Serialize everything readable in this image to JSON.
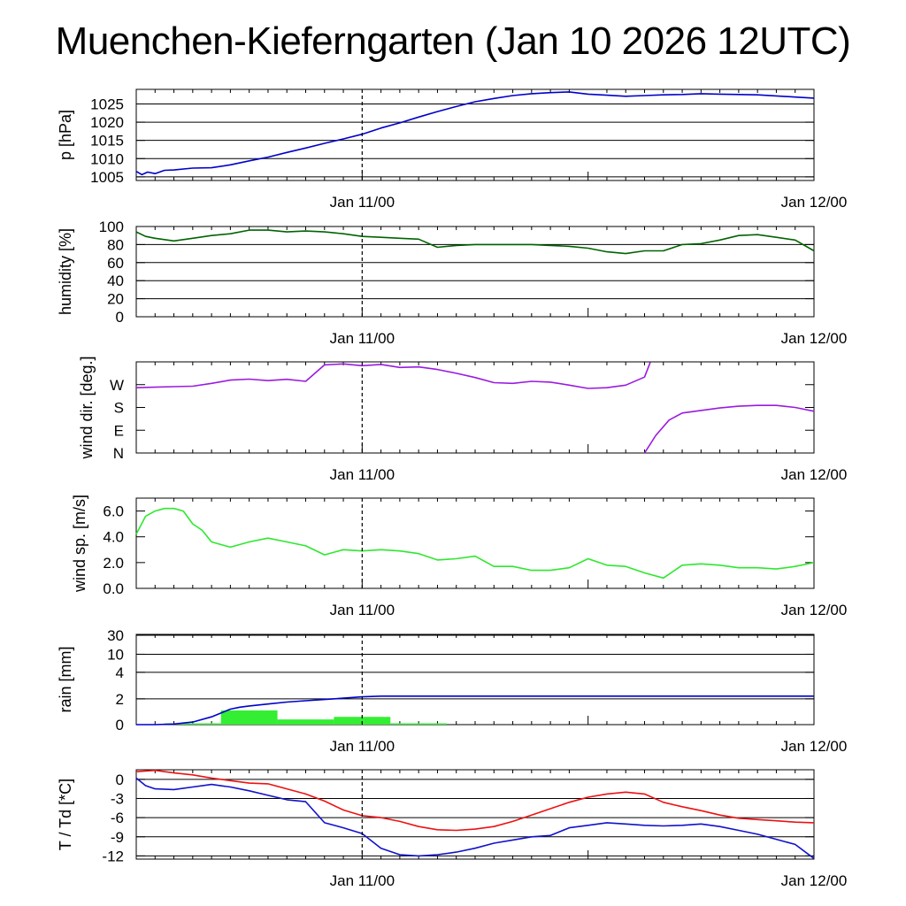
{
  "title": "Muenchen-Kieferngarten (Jan 10 2026 12UTC)",
  "time_labels": [
    "Jan 11/00",
    "Jan 12/00"
  ],
  "chart_data": [
    {
      "type": "line",
      "ylabel": "p [hPa]",
      "ylim": [
        1004,
        1029
      ],
      "yticks": [
        1005,
        1010,
        1015,
        1020,
        1025
      ],
      "gridlines": [
        1005,
        1010,
        1015,
        1020,
        1025
      ],
      "grid": true,
      "xlim": [
        0,
        36
      ],
      "series": [
        {
          "name": "pressure",
          "color": "#0000cc",
          "x": [
            0,
            0.3,
            0.6,
            1,
            1.5,
            2,
            3,
            4,
            5,
            6,
            7,
            8,
            9,
            10,
            11,
            12,
            13,
            14,
            15,
            16,
            17,
            18,
            19,
            20,
            21,
            22,
            23,
            24,
            25,
            26,
            27,
            28,
            29,
            30,
            31,
            32,
            33,
            34,
            35,
            36
          ],
          "y": [
            1006.5,
            1005.6,
            1006.3,
            1005.9,
            1006.8,
            1006.9,
            1007.4,
            1007.5,
            1008.3,
            1009.4,
            1010.4,
            1011.7,
            1012.9,
            1014.2,
            1015.4,
            1016.7,
            1018.4,
            1019.8,
            1021.4,
            1022.9,
            1024.3,
            1025.6,
            1026.5,
            1027.3,
            1027.8,
            1028.1,
            1028.3,
            1027.7,
            1027.4,
            1027.1,
            1027.3,
            1027.5,
            1027.6,
            1027.8,
            1027.7,
            1027.6,
            1027.5,
            1027.2,
            1026.9,
            1026.6
          ]
        }
      ]
    },
    {
      "type": "line",
      "ylabel": "humidity [%]",
      "ylim": [
        0,
        100
      ],
      "yticks": [
        0,
        20,
        40,
        60,
        80,
        100
      ],
      "gridlines": [
        20,
        40,
        60,
        80
      ],
      "grid": true,
      "xlim": [
        0,
        36
      ],
      "series": [
        {
          "name": "humidity",
          "color": "#006400",
          "x": [
            0,
            0.5,
            1,
            2,
            3,
            4,
            5,
            6,
            7,
            8,
            9,
            10,
            11,
            12,
            13,
            14,
            15,
            16,
            17,
            18,
            19,
            20,
            21,
            22,
            23,
            24,
            25,
            26,
            27,
            28,
            29,
            30,
            31,
            32,
            33,
            34,
            35,
            36
          ],
          "y": [
            94,
            89,
            87,
            84,
            87,
            90,
            92,
            96,
            96,
            94,
            95,
            94,
            92,
            89,
            88,
            87,
            86,
            77,
            79,
            80,
            80,
            80,
            80,
            79,
            78,
            76,
            72,
            70,
            73,
            73,
            80,
            81,
            85,
            90,
            91,
            88,
            85,
            73
          ]
        }
      ]
    },
    {
      "type": "line",
      "ylabel": "wind dir. [deg.]",
      "ylim": [
        0,
        360
      ],
      "ytick_values": [
        0,
        90,
        180,
        270
      ],
      "yticks": [
        "N",
        "E",
        "S",
        "W"
      ],
      "grid": false,
      "xlim": [
        0,
        36
      ],
      "series": [
        {
          "name": "wind direction segment 1",
          "color": "#9a1be0",
          "x": [
            0,
            1,
            2,
            3,
            4,
            5,
            6,
            7,
            8,
            9,
            10,
            11,
            12,
            13,
            14,
            15,
            16,
            17,
            18,
            19,
            20,
            21,
            22,
            23,
            24,
            25,
            26,
            27,
            27.3
          ],
          "y": [
            258,
            260,
            262,
            264,
            275,
            288,
            292,
            286,
            291,
            283,
            348,
            352,
            345,
            350,
            338,
            340,
            330,
            315,
            298,
            278,
            275,
            283,
            280,
            268,
            255,
            258,
            268,
            300,
            358
          ]
        },
        {
          "name": "wind direction segment 2",
          "color": "#9a1be0",
          "x": [
            27.0,
            27.6,
            28.3,
            29,
            30,
            31,
            32,
            33,
            34,
            35,
            36
          ],
          "y": [
            0,
            70,
            130,
            158,
            168,
            178,
            185,
            188,
            188,
            180,
            165
          ]
        }
      ]
    },
    {
      "type": "line",
      "ylabel": "wind sp. [m/s]",
      "ylim": [
        0,
        7
      ],
      "yticks": [
        "0.0",
        "2.0",
        "4.0",
        "6.0"
      ],
      "ytick_values": [
        0,
        2,
        4,
        6
      ],
      "grid": false,
      "xlim": [
        0,
        36
      ],
      "series": [
        {
          "name": "wind speed",
          "color": "#2ee82e",
          "x": [
            0,
            0.5,
            1,
            1.5,
            2,
            2.5,
            3,
            3.5,
            4,
            4.5,
            5,
            6,
            7,
            8,
            9,
            10,
            11,
            12,
            13,
            14,
            15,
            16,
            17,
            18,
            19,
            20,
            21,
            22,
            23,
            24,
            25,
            26,
            27,
            28,
            29,
            30,
            31,
            32,
            33,
            34,
            35,
            36
          ],
          "y": [
            4.2,
            5.6,
            6.0,
            6.2,
            6.2,
            6.0,
            5.0,
            4.5,
            3.6,
            3.4,
            3.2,
            3.6,
            3.9,
            3.6,
            3.3,
            2.6,
            3.0,
            2.9,
            3.0,
            2.9,
            2.7,
            2.2,
            2.3,
            2.5,
            1.7,
            1.7,
            1.4,
            1.4,
            1.6,
            2.3,
            1.8,
            1.7,
            1.2,
            0.8,
            1.8,
            1.9,
            1.8,
            1.6,
            1.6,
            1.5,
            1.7,
            2.0
          ]
        }
      ]
    },
    {
      "type": "bar+line",
      "ylabel": "rain [mm]",
      "yscale": "nonlinear",
      "yticks": [
        "0",
        "2",
        "4",
        "10",
        "30"
      ],
      "ytick_values": [
        0,
        2,
        4,
        10,
        30
      ],
      "gridlines": [
        2,
        4,
        10,
        30
      ],
      "grid": true,
      "xlim": [
        0,
        36
      ],
      "bars": {
        "name": "hourly rain (3-hour blocks)",
        "color": "#33ee33",
        "x_start": [
          1.5,
          4.5,
          7.5,
          10.5,
          13.5,
          16.5
        ],
        "x_end": [
          4.5,
          7.5,
          10.5,
          13.5,
          16.5,
          19.5
        ],
        "values": [
          0.1,
          1.1,
          0.4,
          0.6,
          0.1,
          0.0
        ]
      },
      "series": [
        {
          "name": "accumulated rain",
          "color": "#0000cc",
          "x": [
            0,
            1,
            2,
            3,
            4,
            5,
            5.5,
            6,
            7,
            8,
            9,
            10,
            11,
            12,
            13,
            14,
            36
          ],
          "y": [
            0,
            0,
            0.05,
            0.2,
            0.6,
            1.2,
            1.35,
            1.45,
            1.6,
            1.75,
            1.85,
            1.95,
            2.05,
            2.15,
            2.2,
            2.2,
            2.2
          ]
        }
      ]
    },
    {
      "type": "line",
      "ylabel": "T / Td [*C]",
      "ylim": [
        -12.5,
        1.5
      ],
      "yticks": [
        "0",
        "-3",
        "-6",
        "-9",
        "-12"
      ],
      "ytick_values": [
        0,
        -3,
        -6,
        -9,
        -12
      ],
      "gridlines": [
        0,
        -3,
        -6,
        -9,
        -12
      ],
      "grid": true,
      "xlim": [
        0,
        36
      ],
      "series": [
        {
          "name": "temperature",
          "color": "#ee1111",
          "x": [
            0,
            1,
            2,
            3,
            4,
            5,
            6,
            7,
            8,
            9,
            10,
            11,
            12,
            13,
            14,
            15,
            16,
            17,
            18,
            19,
            20,
            21,
            22,
            23,
            24,
            25,
            26,
            27,
            28,
            29,
            30,
            31,
            32,
            33,
            34,
            35,
            36
          ],
          "y": [
            1.2,
            1.4,
            1.0,
            0.7,
            0.2,
            -0.2,
            -0.6,
            -0.7,
            -1.5,
            -2.3,
            -3.4,
            -4.8,
            -5.7,
            -6.0,
            -6.6,
            -7.4,
            -7.9,
            -8.0,
            -7.8,
            -7.4,
            -6.6,
            -5.6,
            -4.6,
            -3.6,
            -2.8,
            -2.3,
            -2.0,
            -2.3,
            -3.6,
            -4.3,
            -4.9,
            -5.6,
            -6.1,
            -6.3,
            -6.5,
            -6.7,
            -6.8
          ]
        },
        {
          "name": "dew point",
          "color": "#1111cc",
          "x": [
            0,
            0.5,
            1,
            2,
            3,
            4,
            5,
            6,
            7,
            8,
            9,
            10,
            11,
            12,
            13,
            14,
            15,
            16,
            17,
            18,
            19,
            20,
            21,
            22,
            23,
            24,
            25,
            26,
            27,
            28,
            29,
            30,
            31,
            32,
            33,
            34,
            35,
            36
          ],
          "y": [
            0.2,
            -1.0,
            -1.5,
            -1.6,
            -1.2,
            -0.8,
            -1.2,
            -1.8,
            -2.5,
            -3.2,
            -3.5,
            -6.8,
            -7.6,
            -8.5,
            -10.8,
            -11.8,
            -12.0,
            -11.8,
            -11.4,
            -10.8,
            -10.0,
            -9.5,
            -9.0,
            -8.8,
            -7.6,
            -7.2,
            -6.8,
            -7.0,
            -7.2,
            -7.3,
            -7.2,
            -7.0,
            -7.4,
            -8.0,
            -8.6,
            -9.4,
            -10.2,
            -12.4
          ]
        }
      ]
    }
  ]
}
